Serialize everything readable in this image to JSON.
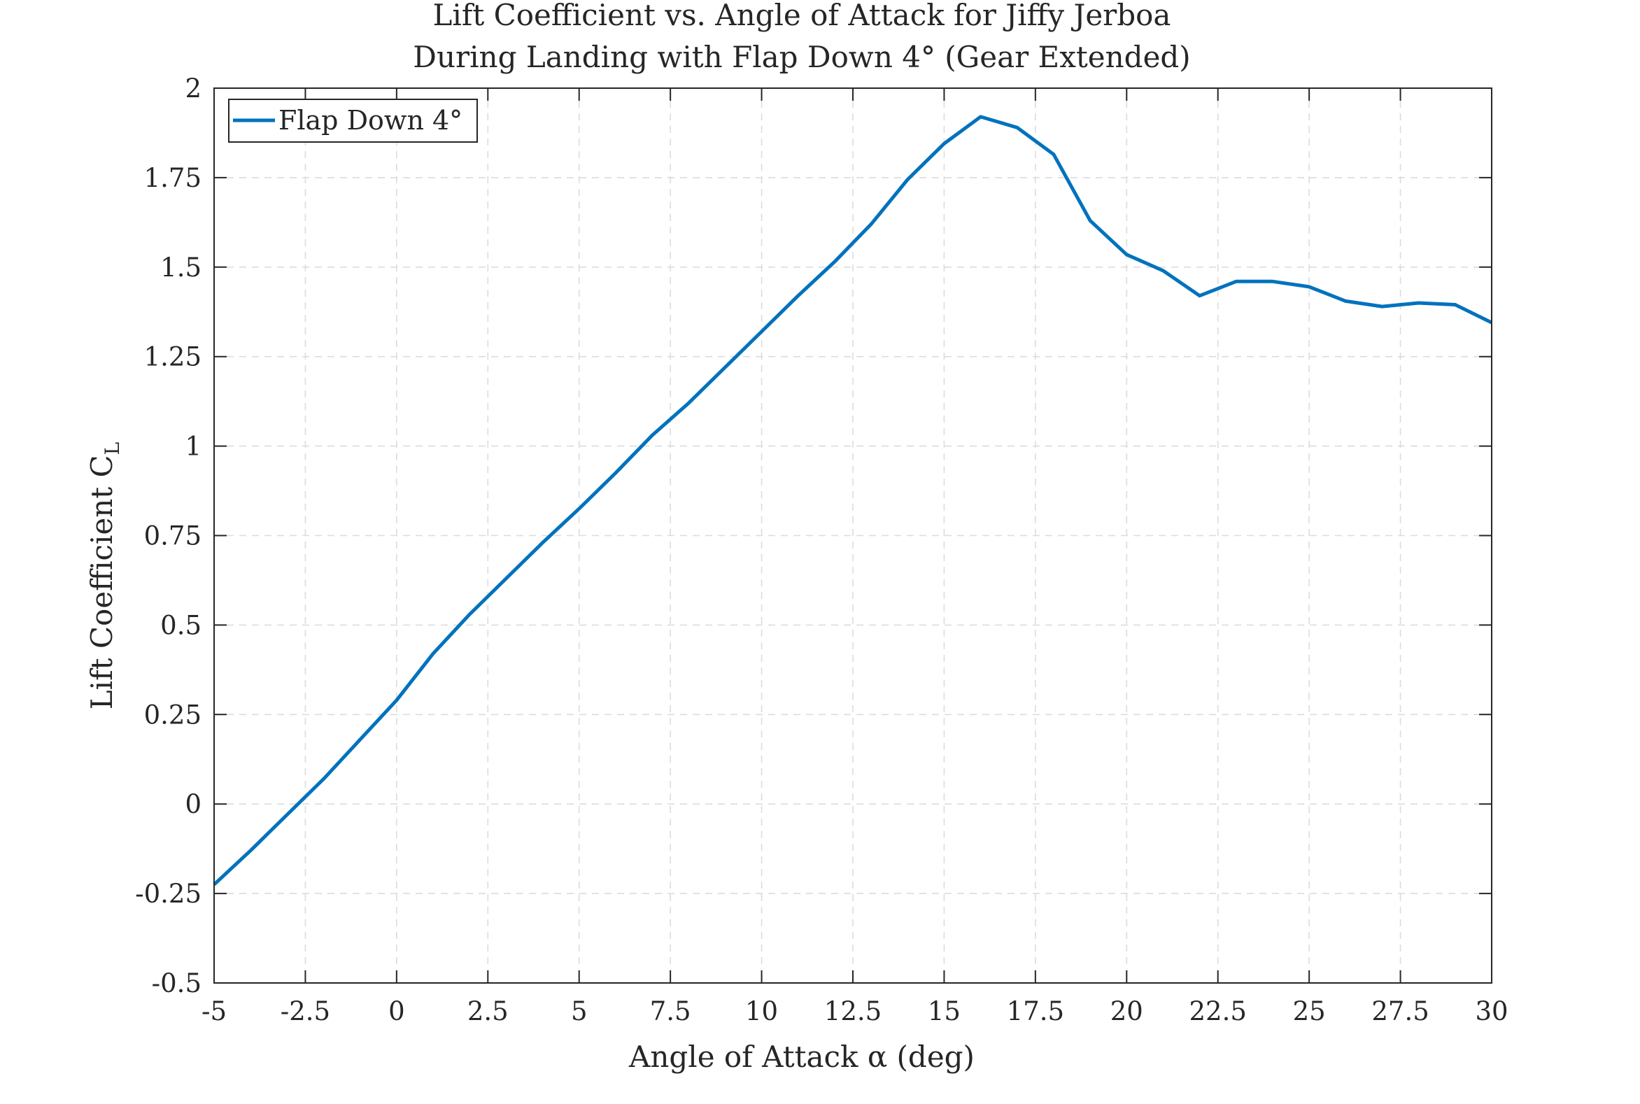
{
  "chart_data": {
    "type": "line",
    "title": [
      "Lift Coefficient vs. Angle of Attack for Jiffy Jerboa",
      "During Landing with Flap Down 4° (Gear Extended)"
    ],
    "xlabel": "Angle of Attack α (deg)",
    "ylabel": "Lift Coefficient C",
    "ylabel_subscript": "L",
    "xlim": [
      -5,
      30
    ],
    "ylim": [
      -0.5,
      2
    ],
    "xticks": [
      -5,
      -2.5,
      0,
      2.5,
      5,
      7.5,
      10,
      12.5,
      15,
      17.5,
      20,
      22.5,
      25,
      27.5,
      30
    ],
    "xtick_labels": [
      "-5",
      "-2.5",
      "0",
      "2.5",
      "5",
      "7.5",
      "10",
      "12.5",
      "15",
      "17.5",
      "20",
      "22.5",
      "25",
      "27.5",
      "30"
    ],
    "yticks": [
      -0.5,
      -0.25,
      0,
      0.25,
      0.5,
      0.75,
      1,
      1.25,
      1.5,
      1.75,
      2
    ],
    "ytick_labels": [
      "-0.5",
      "-0.25",
      "0",
      "0.25",
      "0.5",
      "0.75",
      "1",
      "1.25",
      "1.5",
      "1.75",
      "2"
    ],
    "grid": true,
    "legend_position": "top-left",
    "series": [
      {
        "name": "Flap Down 4°",
        "color": "#0072BD",
        "x": [
          -5,
          -4,
          -3,
          -2,
          -1,
          0,
          1,
          2,
          3,
          4,
          5,
          6,
          7,
          8,
          9,
          10,
          11,
          12,
          13,
          14,
          15,
          16,
          17,
          18,
          19,
          20,
          21,
          22,
          23,
          24,
          25,
          26,
          27,
          28,
          29,
          30
        ],
        "y": [
          -0.225,
          -0.13,
          -0.03,
          0.07,
          0.18,
          0.29,
          0.42,
          0.53,
          0.63,
          0.73,
          0.825,
          0.925,
          1.03,
          1.12,
          1.22,
          1.32,
          1.42,
          1.515,
          1.62,
          1.745,
          1.845,
          1.92,
          1.89,
          1.815,
          1.63,
          1.535,
          1.49,
          1.42,
          1.46,
          1.46,
          1.445,
          1.405,
          1.39,
          1.4,
          1.395,
          1.345
        ]
      }
    ]
  }
}
